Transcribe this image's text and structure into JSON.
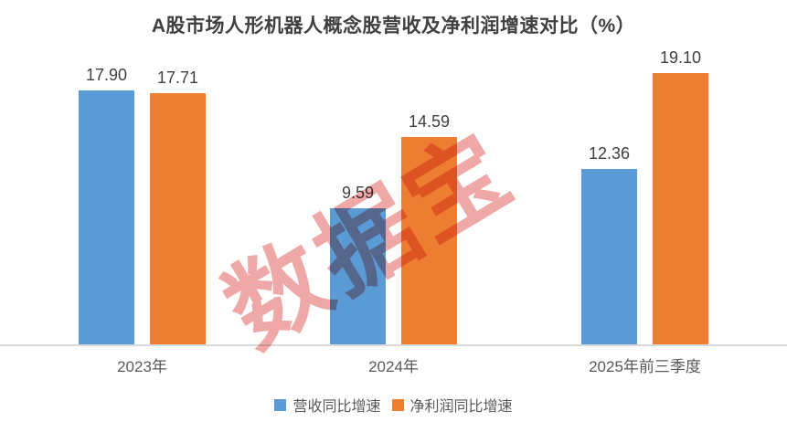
{
  "title": "A股市场人形机器人概念股营收及净利润增速对比（%）",
  "watermark": "数据宝",
  "colors": {
    "series_blue": "#5B9BD5",
    "series_orange": "#ED7D31",
    "axis_line": "#D9D9D9",
    "title_text": "#404040",
    "value_label_text": "#404040",
    "axis_label_text": "#595959",
    "watermark_red": "#E06060"
  },
  "legend": {
    "items": [
      {
        "name": "营收同比增速",
        "color": "#5B9BD5"
      },
      {
        "name": "净利润同比增速",
        "color": "#ED7D31"
      }
    ]
  },
  "chart_data": {
    "type": "bar",
    "title": "A股市场人形机器人概念股营收及净利润增速对比（%）",
    "categories": [
      "2023年",
      "2024年",
      "2025年前三季度"
    ],
    "series": [
      {
        "name": "营收同比增速",
        "color": "#5B9BD5",
        "values": [
          17.9,
          9.59,
          12.36
        ],
        "labels": [
          "17.90",
          "9.59",
          "12.36"
        ]
      },
      {
        "name": "净利润同比增速",
        "color": "#ED7D31",
        "values": [
          17.71,
          14.59,
          19.1
        ],
        "labels": [
          "17.71",
          "14.59",
          "19.10"
        ]
      }
    ],
    "xlabel": "",
    "ylabel": "",
    "ylim": [
      0,
      21
    ],
    "grid": false,
    "y_axis_visible": false,
    "data_labels": true,
    "legend_position": "bottom"
  }
}
